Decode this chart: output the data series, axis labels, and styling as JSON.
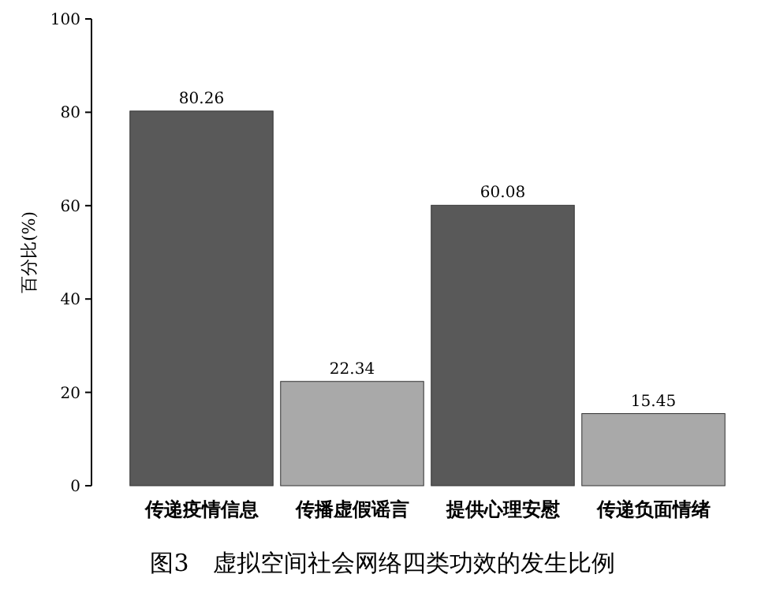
{
  "chart_data": {
    "type": "bar",
    "title": "图3　虚拟空间社会网络四类功效的发生比例",
    "ylabel": "百分比(%)",
    "categories": [
      "传递疫情信息",
      "传播虚假谣言",
      "提供心理安慰",
      "传递负面情绪"
    ],
    "values": [
      80.26,
      22.34,
      60.08,
      15.45
    ],
    "colors": [
      "#595959",
      "#a9a9a9",
      "#595959",
      "#a9a9a9"
    ],
    "ylim": [
      0,
      100
    ],
    "yticks": [
      0,
      20,
      40,
      60,
      80,
      100
    ],
    "data_labels": true
  }
}
